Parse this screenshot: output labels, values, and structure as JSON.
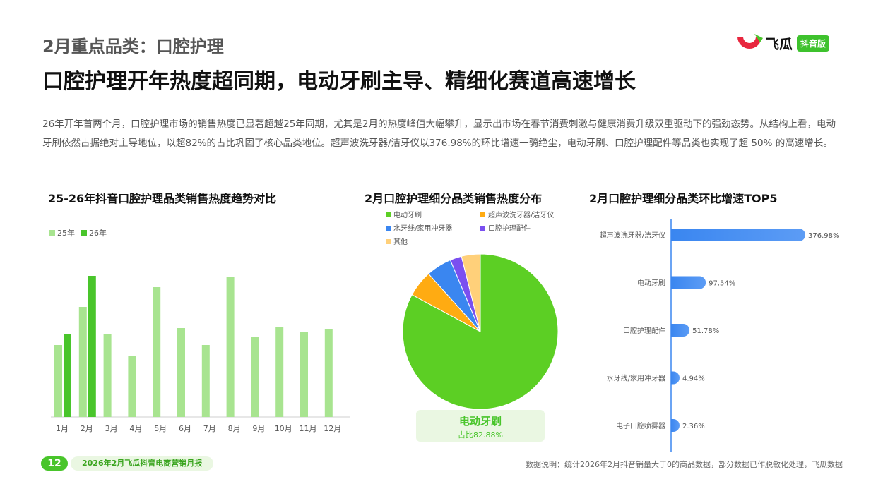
{
  "header": {
    "subtitle": "2月重点品类：口腔护理",
    "title": "口腔护理开年热度超同期，电动牙刷主导、精细化赛道高速增长"
  },
  "logo": {
    "name": "飞瓜",
    "badge": "抖音版"
  },
  "intro": "26年开年首两个月，口腔护理市场的销售热度已显著超越25年同期，尤其是2月的热度峰值大幅攀升，显示出市场在春节消费刺激与健康消费升级双重驱动下的强劲态势。从结构上看，电动牙刷依然占据绝对主导地位，以超82%的占比巩固了核心品类地位。超声波洗牙器/洁牙仪以376.98%的环比增速一骑绝尘，电动牙刷、口腔护理配件等品类也实现了超 50% 的高速增长。",
  "footer": {
    "page_number": "12",
    "report_name": "2026年2月飞瓜抖音电商营销月报",
    "note": "数据说明：统计2026年2月抖音销量大于0的商品数据，部分数据已作脱敏化处理，飞瓜数据"
  },
  "callout": {
    "label": "电动牙刷",
    "sub": "占比82.88%"
  },
  "colors": {
    "green_light": "#a8e490",
    "green_dark": "#49c52b",
    "blue": "#3a86f0",
    "orange": "#ffab12",
    "purple": "#7a4ff0",
    "yellow": "#ffd07a"
  },
  "chart_data": [
    {
      "type": "bar",
      "title": "25-26年抖音口腔护理品类销售热度趋势对比",
      "categories": [
        "1月",
        "2月",
        "3月",
        "4月",
        "5月",
        "6月",
        "7月",
        "8月",
        "9月",
        "10月",
        "11月",
        "12月"
      ],
      "series": [
        {
          "name": "25年",
          "color": "#a8e490",
          "values": [
            51,
            78,
            59,
            43,
            92,
            63,
            51,
            99,
            57,
            64,
            60,
            62
          ]
        },
        {
          "name": "26年",
          "color": "#49c52b",
          "values": [
            59,
            100,
            null,
            null,
            null,
            null,
            null,
            null,
            null,
            null,
            null,
            null
          ]
        }
      ],
      "ylim": [
        0,
        100
      ],
      "legend": "top-left"
    },
    {
      "type": "pie",
      "title": "2月口腔护理细分品类销售热度分布",
      "slices": [
        {
          "name": "电动牙刷",
          "value": 82.88,
          "color": "#5ccf24"
        },
        {
          "name": "超声波洗牙器/洁牙仪",
          "value": 5.5,
          "color": "#ffab12"
        },
        {
          "name": "水牙线/家用冲牙器",
          "value": 5.3,
          "color": "#3a86f0"
        },
        {
          "name": "口腔护理配件",
          "value": 2.4,
          "color": "#7a4ff0"
        },
        {
          "name": "其他",
          "value": 3.92,
          "color": "#ffd07a"
        }
      ],
      "legend": "top"
    },
    {
      "type": "bar",
      "orientation": "horizontal",
      "title": "2月口腔护理细分品类环比增速TOP5",
      "categories": [
        "超声波洗牙器/洁牙仪",
        "电动牙刷",
        "口腔护理配件",
        "水牙线/家用冲牙器",
        "电子口腔喷雾器"
      ],
      "values": [
        376.98,
        97.54,
        51.78,
        4.94,
        2.36
      ],
      "labels": [
        "376.98%",
        "97.54%",
        "51.78%",
        "4.94%",
        "2.36%"
      ],
      "xlim": [
        0,
        376.98
      ]
    }
  ]
}
